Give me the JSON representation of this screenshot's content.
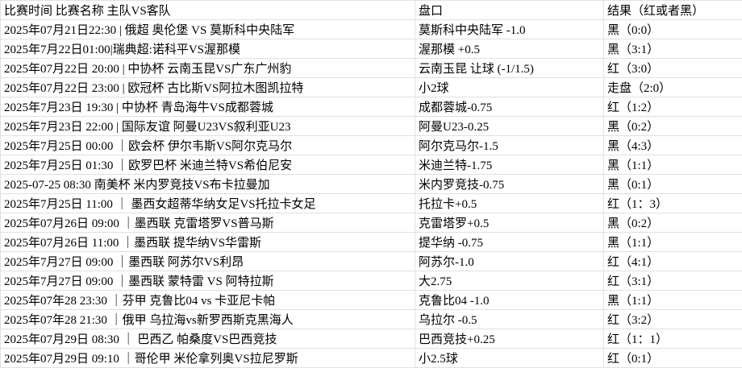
{
  "colors": {
    "background": "#ffffff",
    "gridline": "#e0e0e0",
    "text": "#000000"
  },
  "table": {
    "headers": [
      "比赛时间 比赛名称 主队VS客队",
      "盘口",
      "结果（红或者黑）"
    ],
    "rows": [
      [
        "2025年07月21日22:30 | 俄超 奥伦堡 VS 莫斯科中央陆军",
        "莫斯科中央陆军 -1.0",
        "黑（0:0）"
      ],
      [
        "2025年7月22日01:00|瑞典超:诺科平VS渥那模",
        "渥那模 +0.5",
        "黑（3:1）"
      ],
      [
        "2025年07月22日 20:00 | 中协杯 云南玉昆VS广东广州豹",
        "云南玉昆 让球 (-1/1.5)",
        "红（3:0）"
      ],
      [
        "2025年07月22日 23:00 | 欧冠杯 古比斯VS阿拉木图凯拉特",
        "小2球",
        "走盘（2:0）"
      ],
      [
        "2025年7月23日 19:30 | 中协杯 青岛海牛VS成都蓉城",
        "成都蓉城-0.75",
        "红（1:2）"
      ],
      [
        "2025年7月23日 22:00 | 国际友谊 阿曼U23VS叙利亚U23",
        "阿曼U23-0.25",
        "黑（0:2）"
      ],
      [
        "2025年7月25日 00:00 ｜欧会杯 伊尔韦斯VS阿尔克马尔",
        "阿尔克马尔-1.5",
        "黑（4:3）"
      ],
      [
        "2025年7月25日 01:30  ｜欧罗巴杯 米迪兰特VS希伯尼安",
        "米迪兰特-1.75",
        "黑（1:1）"
      ],
      [
        "2025-07-25 08:30 南美杯 米内罗竞技VS布卡拉曼加",
        "米内罗竞技-0.75",
        "黑（0:1）"
      ],
      [
        "2025年7月25日 11:00  ｜  墨西女超蒂华纳女足VS托拉卡女足",
        "托拉卡+0.5",
        "红（1：3）"
      ],
      [
        "2025年07月26日 09:00 ｜墨西联 克雷塔罗VS普马斯",
        "克雷塔罗+0.5",
        "黑（0:2）"
      ],
      [
        "2025年07月26日 11:00 ｜墨西联 提华纳VS华雷斯",
        "提华纳 -0.75",
        "黑（1:1）"
      ],
      [
        "2025年7月27日 09:00  ｜墨西联 阿苏尔VS利昂",
        "阿苏尔-1.0",
        "红（4:1）"
      ],
      [
        "2025年7月27日 09:00  ｜墨西联 蒙特雷 VS 阿特拉斯",
        "大2.75",
        "红（3:1）"
      ],
      [
        "2025年07年28 23:30 ｜芬甲 克鲁比04 vs 卡亚尼卡帕",
        "克鲁比04 -1.0",
        "黑（1:1）"
      ],
      [
        "2025年07年28 21:30 ｜俄甲 乌拉海vs新罗西斯克黑海人",
        "乌拉尔 -0.5",
        "红（3:2）"
      ],
      [
        "2025年07月29日 08:30  ｜ 巴西乙 帕桑度VS巴西竞技",
        "巴西竞技+0.25",
        "红（1：1）"
      ],
      [
        "2025年07月29日 09:10  ｜哥伦甲 米伦拿列奥VS拉尼罗斯",
        "小2.5球",
        "红（0:1）"
      ]
    ]
  }
}
